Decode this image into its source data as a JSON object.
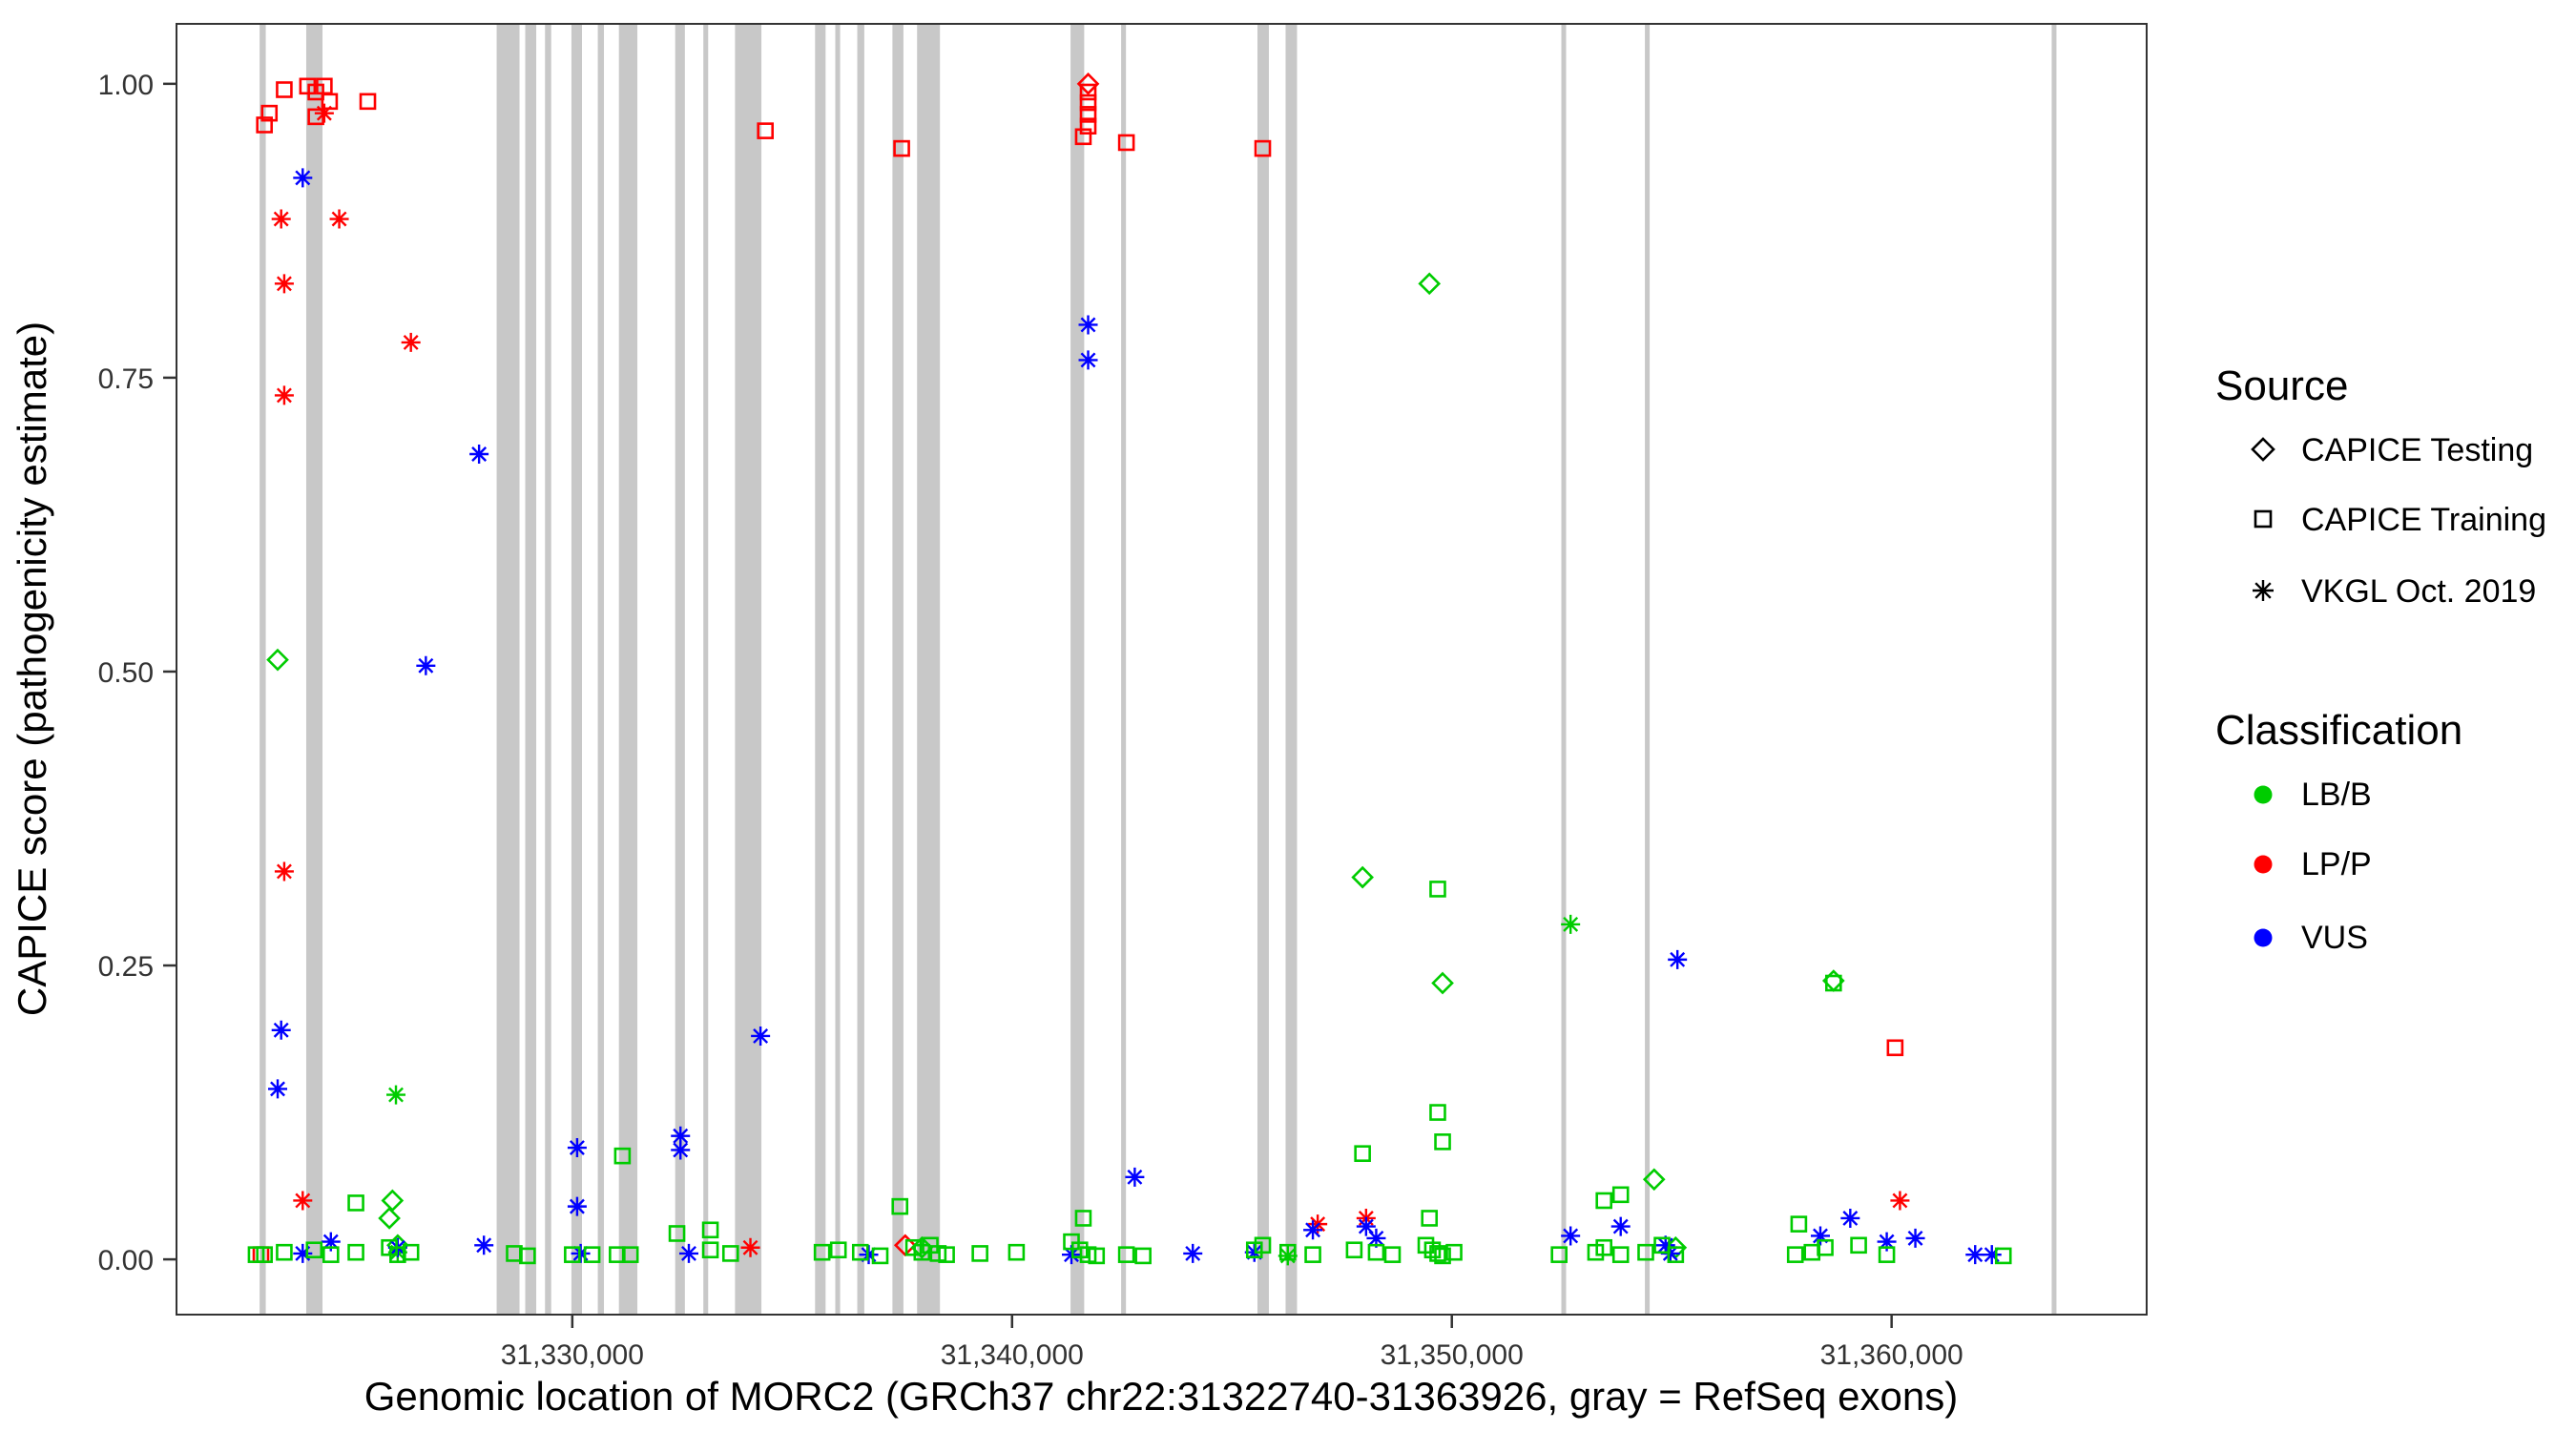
{
  "legend": {
    "source": {
      "title": "Source",
      "items": [
        {
          "shape": "diamond",
          "label": "CAPICE Testing"
        },
        {
          "shape": "square",
          "label": "CAPICE Training"
        },
        {
          "shape": "asterisk",
          "label": "VKGL Oct. 2019"
        }
      ]
    },
    "classification": {
      "title": "Classification",
      "items": [
        {
          "label": "LB/B",
          "color": "#00cc00"
        },
        {
          "label": "LP/P",
          "color": "#ff0000"
        },
        {
          "label": "VUS",
          "color": "#0000ff"
        }
      ]
    }
  },
  "chart_data": {
    "type": "scatter",
    "title": "",
    "xlabel": "Genomic location of MORC2 (GRCh37 chr22:31322740-31363926, gray = RefSeq exons)",
    "ylabel": "CAPICE score (pathogenicity estimate)",
    "xlim": [
      31321000,
      31365800
    ],
    "ylim": [
      0,
      1
    ],
    "grid": false,
    "legend_position": "right",
    "exon_color": "#c8c8c8",
    "colors": {
      "LB/B": "#00cc00",
      "LP/P": "#ff0000",
      "VUS": "#0000ff"
    },
    "source_shapes": {
      "testing": "diamond",
      "training": "square",
      "vkgl": "asterisk"
    },
    "x_ticks": [
      {
        "value": 31330000,
        "label": "31,330,000"
      },
      {
        "value": 31340000,
        "label": "31,340,000"
      },
      {
        "value": 31350000,
        "label": "31,350,000"
      },
      {
        "value": 31360000,
        "label": "31,360,000"
      }
    ],
    "y_ticks": [
      {
        "value": 0.0,
        "label": "0.00"
      },
      {
        "value": 0.25,
        "label": "0.25"
      },
      {
        "value": 0.5,
        "label": "0.50"
      },
      {
        "value": 0.75,
        "label": "0.75"
      },
      {
        "value": 1.0,
        "label": "1.00"
      }
    ],
    "exons": [
      [
        31322890,
        31323030
      ],
      [
        31323950,
        31324320
      ],
      [
        31328280,
        31328800
      ],
      [
        31328930,
        31329180
      ],
      [
        31329380,
        31329520
      ],
      [
        31329980,
        31330220
      ],
      [
        31330580,
        31330720
      ],
      [
        31331060,
        31331480
      ],
      [
        31332340,
        31332560
      ],
      [
        31332980,
        31333090
      ],
      [
        31333700,
        31334300
      ],
      [
        31335520,
        31335760
      ],
      [
        31335980,
        31336090
      ],
      [
        31336480,
        31336640
      ],
      [
        31337280,
        31337530
      ],
      [
        31337840,
        31338360
      ],
      [
        31341330,
        31341640
      ],
      [
        31342480,
        31342590
      ],
      [
        31345580,
        31345840
      ],
      [
        31346220,
        31346480
      ],
      [
        31352490,
        31352570
      ],
      [
        31354390,
        31354470
      ],
      [
        31363640,
        31363740
      ]
    ],
    "point_format": [
      "genomic_position",
      "capice_score",
      "source",
      "classification"
    ],
    "points": [
      [
        31341730,
        1.0,
        "testing",
        "LP/P"
      ],
      [
        31337570,
        0.012,
        "testing",
        "LP/P"
      ],
      [
        31323300,
        0.51,
        "testing",
        "LB/B"
      ],
      [
        31349490,
        0.83,
        "testing",
        "LB/B"
      ],
      [
        31347970,
        0.325,
        "testing",
        "LB/B"
      ],
      [
        31349790,
        0.235,
        "testing",
        "LB/B"
      ],
      [
        31358680,
        0.237,
        "testing",
        "LB/B"
      ],
      [
        31354600,
        0.068,
        "testing",
        "LB/B"
      ],
      [
        31325910,
        0.05,
        "testing",
        "LB/B"
      ],
      [
        31325840,
        0.035,
        "testing",
        "LB/B"
      ],
      [
        31326030,
        0.012,
        "testing",
        "LB/B"
      ],
      [
        31337950,
        0.01,
        "testing",
        "LB/B"
      ],
      [
        31355090,
        0.01,
        "testing",
        "LB/B"
      ],
      [
        31322920,
        0.004,
        "training",
        "LP/P"
      ],
      [
        31323000,
        0.965,
        "training",
        "LP/P"
      ],
      [
        31323110,
        0.975,
        "training",
        "LP/P"
      ],
      [
        31323450,
        0.995,
        "training",
        "LP/P"
      ],
      [
        31323980,
        0.998,
        "training",
        "LP/P"
      ],
      [
        31324170,
        0.993,
        "training",
        "LP/P"
      ],
      [
        31324360,
        0.998,
        "training",
        "LP/P"
      ],
      [
        31324480,
        0.985,
        "training",
        "LP/P"
      ],
      [
        31324170,
        0.972,
        "training",
        "LP/P"
      ],
      [
        31325350,
        0.985,
        "training",
        "LP/P"
      ],
      [
        31334390,
        0.96,
        "training",
        "LP/P"
      ],
      [
        31337490,
        0.945,
        "training",
        "LP/P"
      ],
      [
        31341730,
        0.993,
        "training",
        "LP/P"
      ],
      [
        31341730,
        0.984,
        "training",
        "LP/P"
      ],
      [
        31341730,
        0.974,
        "training",
        "LP/P"
      ],
      [
        31341730,
        0.964,
        "training",
        "LP/P"
      ],
      [
        31341620,
        0.955,
        "training",
        "LP/P"
      ],
      [
        31342600,
        0.95,
        "training",
        "LP/P"
      ],
      [
        31345700,
        0.945,
        "training",
        "LP/P"
      ],
      [
        31360080,
        0.18,
        "training",
        "LP/P"
      ],
      [
        31323380,
        0.885,
        "vkgl",
        "LP/P"
      ],
      [
        31324700,
        0.885,
        "vkgl",
        "LP/P"
      ],
      [
        31324360,
        0.975,
        "vkgl",
        "LP/P"
      ],
      [
        31323450,
        0.83,
        "vkgl",
        "LP/P"
      ],
      [
        31323450,
        0.735,
        "vkgl",
        "LP/P"
      ],
      [
        31326330,
        0.78,
        "vkgl",
        "LP/P"
      ],
      [
        31323450,
        0.33,
        "vkgl",
        "LP/P"
      ],
      [
        31323870,
        0.05,
        "vkgl",
        "LP/P"
      ],
      [
        31334050,
        0.01,
        "vkgl",
        "LP/P"
      ],
      [
        31346950,
        0.03,
        "vkgl",
        "LP/P"
      ],
      [
        31348050,
        0.035,
        "vkgl",
        "LP/P"
      ],
      [
        31360190,
        0.05,
        "vkgl",
        "LP/P"
      ],
      [
        31325990,
        0.14,
        "vkgl",
        "LB/B"
      ],
      [
        31352700,
        0.285,
        "vkgl",
        "LB/B"
      ],
      [
        31326030,
        0.006,
        "vkgl",
        "LB/B"
      ],
      [
        31346270,
        0.003,
        "vkgl",
        "LB/B"
      ],
      [
        31323870,
        0.92,
        "vkgl",
        "VUS"
      ],
      [
        31327880,
        0.685,
        "vkgl",
        "VUS"
      ],
      [
        31326670,
        0.505,
        "vkgl",
        "VUS"
      ],
      [
        31323380,
        0.195,
        "vkgl",
        "VUS"
      ],
      [
        31323300,
        0.145,
        "vkgl",
        "VUS"
      ],
      [
        31341730,
        0.795,
        "vkgl",
        "VUS"
      ],
      [
        31341730,
        0.765,
        "vkgl",
        "VUS"
      ],
      [
        31334280,
        0.19,
        "vkgl",
        "VUS"
      ],
      [
        31332460,
        0.105,
        "vkgl",
        "VUS"
      ],
      [
        31332460,
        0.093,
        "vkgl",
        "VUS"
      ],
      [
        31330110,
        0.095,
        "vkgl",
        "VUS"
      ],
      [
        31330110,
        0.045,
        "vkgl",
        "VUS"
      ],
      [
        31342790,
        0.07,
        "vkgl",
        "VUS"
      ],
      [
        31355130,
        0.255,
        "vkgl",
        "VUS"
      ],
      [
        31352700,
        0.02,
        "vkgl",
        "VUS"
      ],
      [
        31359060,
        0.035,
        "vkgl",
        "VUS"
      ],
      [
        31326030,
        0.01,
        "vkgl",
        "VUS"
      ],
      [
        31324510,
        0.015,
        "vkgl",
        "VUS"
      ],
      [
        31323870,
        0.005,
        "vkgl",
        "VUS"
      ],
      [
        31327990,
        0.012,
        "vkgl",
        "VUS"
      ],
      [
        31330190,
        0.005,
        "vkgl",
        "VUS"
      ],
      [
        31332650,
        0.005,
        "vkgl",
        "VUS"
      ],
      [
        31336740,
        0.004,
        "vkgl",
        "VUS"
      ],
      [
        31341350,
        0.004,
        "vkgl",
        "VUS"
      ],
      [
        31344110,
        0.005,
        "vkgl",
        "VUS"
      ],
      [
        31345510,
        0.006,
        "vkgl",
        "VUS"
      ],
      [
        31346840,
        0.025,
        "vkgl",
        "VUS"
      ],
      [
        31348280,
        0.018,
        "vkgl",
        "VUS"
      ],
      [
        31353840,
        0.028,
        "vkgl",
        "VUS"
      ],
      [
        31354860,
        0.012,
        "vkgl",
        "VUS"
      ],
      [
        31354970,
        0.005,
        "vkgl",
        "VUS"
      ],
      [
        31358380,
        0.02,
        "vkgl",
        "VUS"
      ],
      [
        31359890,
        0.015,
        "vkgl",
        "VUS"
      ],
      [
        31360540,
        0.018,
        "vkgl",
        "VUS"
      ],
      [
        31361900,
        0.004,
        "vkgl",
        "VUS"
      ],
      [
        31362280,
        0.004,
        "vkgl",
        "VUS"
      ],
      [
        31348050,
        0.028,
        "vkgl",
        "VUS"
      ],
      [
        31331140,
        0.088,
        "training",
        "LB/B"
      ],
      [
        31349680,
        0.315,
        "training",
        "LB/B"
      ],
      [
        31349680,
        0.125,
        "training",
        "LB/B"
      ],
      [
        31349790,
        0.1,
        "training",
        "LB/B"
      ],
      [
        31347970,
        0.09,
        "training",
        "LB/B"
      ],
      [
        31337450,
        0.045,
        "training",
        "LB/B"
      ],
      [
        31341620,
        0.035,
        "training",
        "LB/B"
      ],
      [
        31353460,
        0.05,
        "training",
        "LB/B"
      ],
      [
        31353840,
        0.055,
        "training",
        "LB/B"
      ],
      [
        31349490,
        0.035,
        "training",
        "LB/B"
      ],
      [
        31357890,
        0.03,
        "training",
        "LB/B"
      ],
      [
        31333140,
        0.025,
        "training",
        "LB/B"
      ],
      [
        31325080,
        0.048,
        "training",
        "LB/B"
      ],
      [
        31332380,
        0.022,
        "training",
        "LB/B"
      ],
      [
        31358680,
        0.235,
        "training",
        "LB/B"
      ],
      [
        31322810,
        0.004,
        "training",
        "LB/B"
      ],
      [
        31323000,
        0.004,
        "training",
        "LB/B"
      ],
      [
        31323450,
        0.006,
        "training",
        "LB/B"
      ],
      [
        31324130,
        0.008,
        "training",
        "LB/B"
      ],
      [
        31324510,
        0.004,
        "training",
        "LB/B"
      ],
      [
        31325080,
        0.006,
        "training",
        "LB/B"
      ],
      [
        31325840,
        0.01,
        "training",
        "LB/B"
      ],
      [
        31326030,
        0.004,
        "training",
        "LB/B"
      ],
      [
        31326330,
        0.006,
        "training",
        "LB/B"
      ],
      [
        31328680,
        0.005,
        "training",
        "LB/B"
      ],
      [
        31328980,
        0.003,
        "training",
        "LB/B"
      ],
      [
        31330000,
        0.004,
        "training",
        "LB/B"
      ],
      [
        31330450,
        0.004,
        "training",
        "LB/B"
      ],
      [
        31331020,
        0.004,
        "training",
        "LB/B"
      ],
      [
        31331320,
        0.004,
        "training",
        "LB/B"
      ],
      [
        31333140,
        0.008,
        "training",
        "LB/B"
      ],
      [
        31333600,
        0.005,
        "training",
        "LB/B"
      ],
      [
        31335680,
        0.006,
        "training",
        "LB/B"
      ],
      [
        31336050,
        0.008,
        "training",
        "LB/B"
      ],
      [
        31336550,
        0.006,
        "training",
        "LB/B"
      ],
      [
        31337000,
        0.003,
        "training",
        "LB/B"
      ],
      [
        31337760,
        0.01,
        "training",
        "LB/B"
      ],
      [
        31337950,
        0.006,
        "training",
        "LB/B"
      ],
      [
        31338140,
        0.012,
        "training",
        "LB/B"
      ],
      [
        31338320,
        0.005,
        "training",
        "LB/B"
      ],
      [
        31338510,
        0.004,
        "training",
        "LB/B"
      ],
      [
        31339270,
        0.005,
        "training",
        "LB/B"
      ],
      [
        31340100,
        0.006,
        "training",
        "LB/B"
      ],
      [
        31341350,
        0.015,
        "training",
        "LB/B"
      ],
      [
        31341540,
        0.008,
        "training",
        "LB/B"
      ],
      [
        31341730,
        0.004,
        "training",
        "LB/B"
      ],
      [
        31341920,
        0.003,
        "training",
        "LB/B"
      ],
      [
        31342600,
        0.004,
        "training",
        "LB/B"
      ],
      [
        31342980,
        0.003,
        "training",
        "LB/B"
      ],
      [
        31345510,
        0.008,
        "training",
        "LB/B"
      ],
      [
        31345700,
        0.012,
        "training",
        "LB/B"
      ],
      [
        31346270,
        0.006,
        "training",
        "LB/B"
      ],
      [
        31346840,
        0.004,
        "training",
        "LB/B"
      ],
      [
        31347780,
        0.008,
        "training",
        "LB/B"
      ],
      [
        31348280,
        0.006,
        "training",
        "LB/B"
      ],
      [
        31348650,
        0.004,
        "training",
        "LB/B"
      ],
      [
        31349410,
        0.012,
        "training",
        "LB/B"
      ],
      [
        31349560,
        0.008,
        "training",
        "LB/B"
      ],
      [
        31349680,
        0.005,
        "training",
        "LB/B"
      ],
      [
        31349790,
        0.003,
        "training",
        "LB/B"
      ],
      [
        31350050,
        0.006,
        "training",
        "LB/B"
      ],
      [
        31352440,
        0.004,
        "training",
        "LB/B"
      ],
      [
        31353270,
        0.006,
        "training",
        "LB/B"
      ],
      [
        31353460,
        0.01,
        "training",
        "LB/B"
      ],
      [
        31353840,
        0.004,
        "training",
        "LB/B"
      ],
      [
        31354410,
        0.006,
        "training",
        "LB/B"
      ],
      [
        31354780,
        0.012,
        "training",
        "LB/B"
      ],
      [
        31355090,
        0.004,
        "training",
        "LB/B"
      ],
      [
        31357810,
        0.004,
        "training",
        "LB/B"
      ],
      [
        31358190,
        0.006,
        "training",
        "LB/B"
      ],
      [
        31358490,
        0.01,
        "training",
        "LB/B"
      ],
      [
        31359250,
        0.012,
        "training",
        "LB/B"
      ],
      [
        31359890,
        0.004,
        "training",
        "LB/B"
      ],
      [
        31362540,
        0.003,
        "training",
        "LB/B"
      ]
    ]
  }
}
